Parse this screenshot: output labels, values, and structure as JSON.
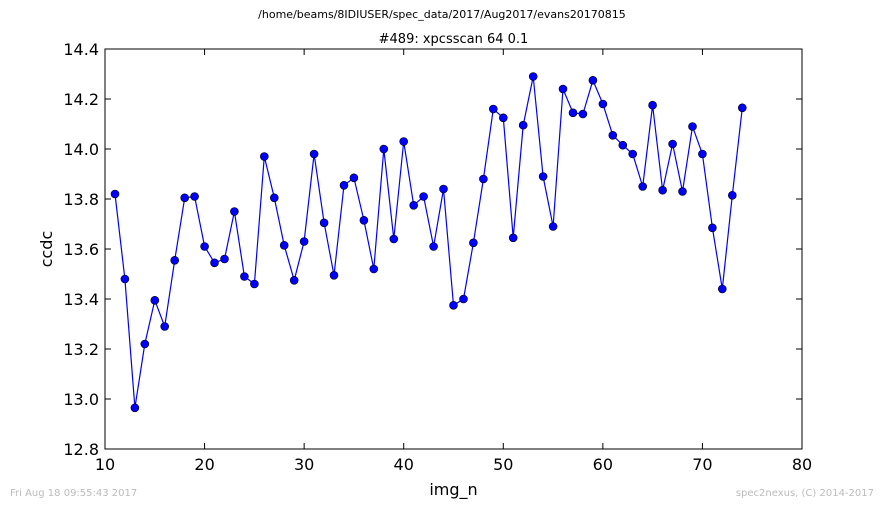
{
  "header": {
    "path": "/home/beams/8IDIUSER/spec_data/2017/Aug2017/evans20170815"
  },
  "footer": {
    "timestamp": "Fri Aug 18 09:55:43 2017",
    "credit": "spec2nexus, (C) 2014-2017"
  },
  "colors": {
    "series": "#0000ff",
    "frame": "#000000"
  },
  "chart_data": {
    "type": "line",
    "title": "#489: xpcsscan 64 0.1",
    "xlabel": "img_n",
    "ylabel": "ccdc",
    "xlim": [
      10,
      80
    ],
    "ylim": [
      12.8,
      14.4
    ],
    "xticks": [
      "10",
      "20",
      "30",
      "40",
      "50",
      "60",
      "70",
      "80"
    ],
    "yticks": [
      "12.8",
      "13.0",
      "13.2",
      "13.4",
      "13.6",
      "13.8",
      "14.0",
      "14.2",
      "14.4"
    ],
    "grid": false,
    "marker": "circle",
    "series": [
      {
        "x": [
          11,
          12,
          13,
          14,
          15,
          16,
          17,
          18,
          19,
          20,
          21,
          22,
          23,
          24,
          25,
          26,
          27,
          28,
          29,
          30,
          31,
          32,
          33,
          34,
          35,
          36,
          37,
          38,
          39,
          40,
          41,
          42,
          43,
          44,
          45,
          46,
          47,
          48,
          49,
          50,
          51,
          52,
          53,
          54,
          55,
          56,
          57,
          58,
          59,
          60,
          61,
          62,
          63,
          64,
          65,
          66,
          67,
          68,
          69,
          70,
          71,
          72,
          73,
          74
        ],
        "y": [
          13.82,
          13.48,
          12.965,
          13.22,
          13.395,
          13.29,
          13.555,
          13.805,
          13.81,
          13.61,
          13.545,
          13.56,
          13.75,
          13.49,
          13.46,
          13.97,
          13.805,
          13.615,
          13.475,
          13.63,
          13.98,
          13.705,
          13.495,
          13.855,
          13.885,
          13.715,
          13.52,
          14.0,
          13.64,
          14.03,
          13.775,
          13.81,
          13.61,
          13.84,
          13.375,
          13.4,
          13.625,
          13.88,
          14.16,
          14.125,
          13.645,
          14.095,
          14.29,
          13.89,
          13.69,
          14.24,
          14.145,
          14.14,
          14.275,
          14.18,
          14.055,
          14.015,
          13.98,
          13.85,
          14.175,
          13.835,
          14.02,
          13.83,
          14.09,
          13.98,
          13.685,
          13.44,
          13.815,
          14.165
        ]
      }
    ]
  }
}
